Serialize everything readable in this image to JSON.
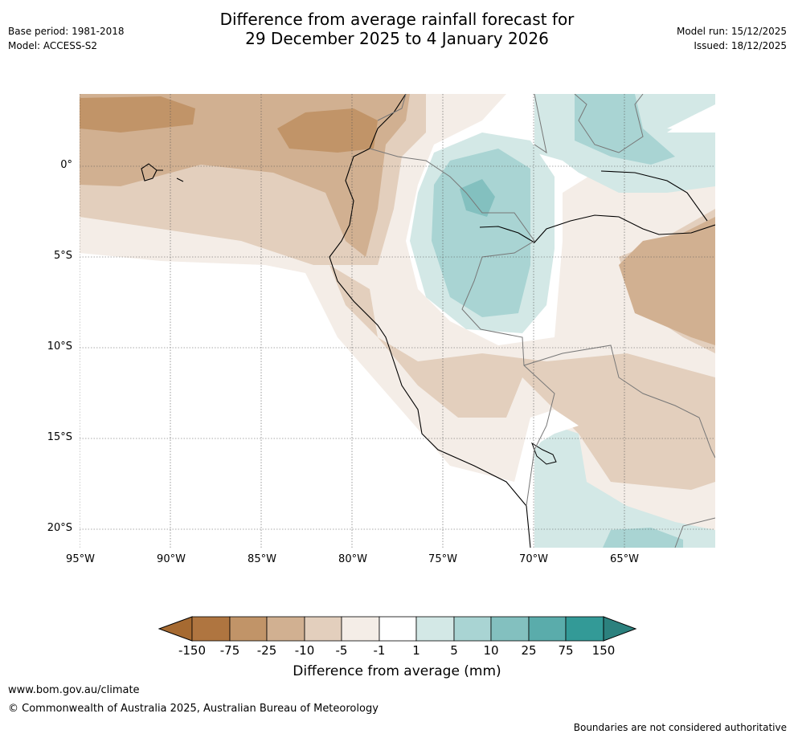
{
  "header": {
    "title_line1": "Difference from average rainfall forecast for",
    "title_line2": "29 December 2025 to 4 January 2026",
    "base_period": "Base period: 1981-2018",
    "model": "Model: ACCESS-S2",
    "model_run": "Model run: 15/12/2025",
    "issued": "Issued: 18/12/2025"
  },
  "map": {
    "lat_labels": [
      "0°",
      "5°S",
      "10°S",
      "15°S",
      "20°S"
    ],
    "lon_labels": [
      "95°W",
      "90°W",
      "85°W",
      "80°W",
      "75°W",
      "70°W",
      "65°W"
    ]
  },
  "colorbar": {
    "label": "Difference from average (mm)",
    "ticks": [
      "-150",
      "-75",
      "-25",
      "-10",
      "-5",
      "-1",
      "1",
      "5",
      "10",
      "25",
      "75",
      "150"
    ],
    "colors": {
      "below_min": "#a66a31",
      "lt_m75": "#af7540",
      "m75_m25": "#c19468",
      "m25_m10": "#d1b091",
      "m10_m5": "#e3cfbd",
      "m5_m1": "#f4ede7",
      "m1_1": "#ffffff",
      "p1_p5": "#d3e8e6",
      "p5_p10": "#a9d4d3",
      "p10_p25": "#83c0bf",
      "p25_p75": "#5aacab",
      "p75_p150": "#339a97",
      "above_max": "#2c817e"
    }
  },
  "footer": {
    "url": "www.bom.gov.au/climate",
    "copyright": "© Commonwealth of Australia 2025, Australian Bureau of Meteorology",
    "disclaimer": "Boundaries are not considered authoritative"
  }
}
